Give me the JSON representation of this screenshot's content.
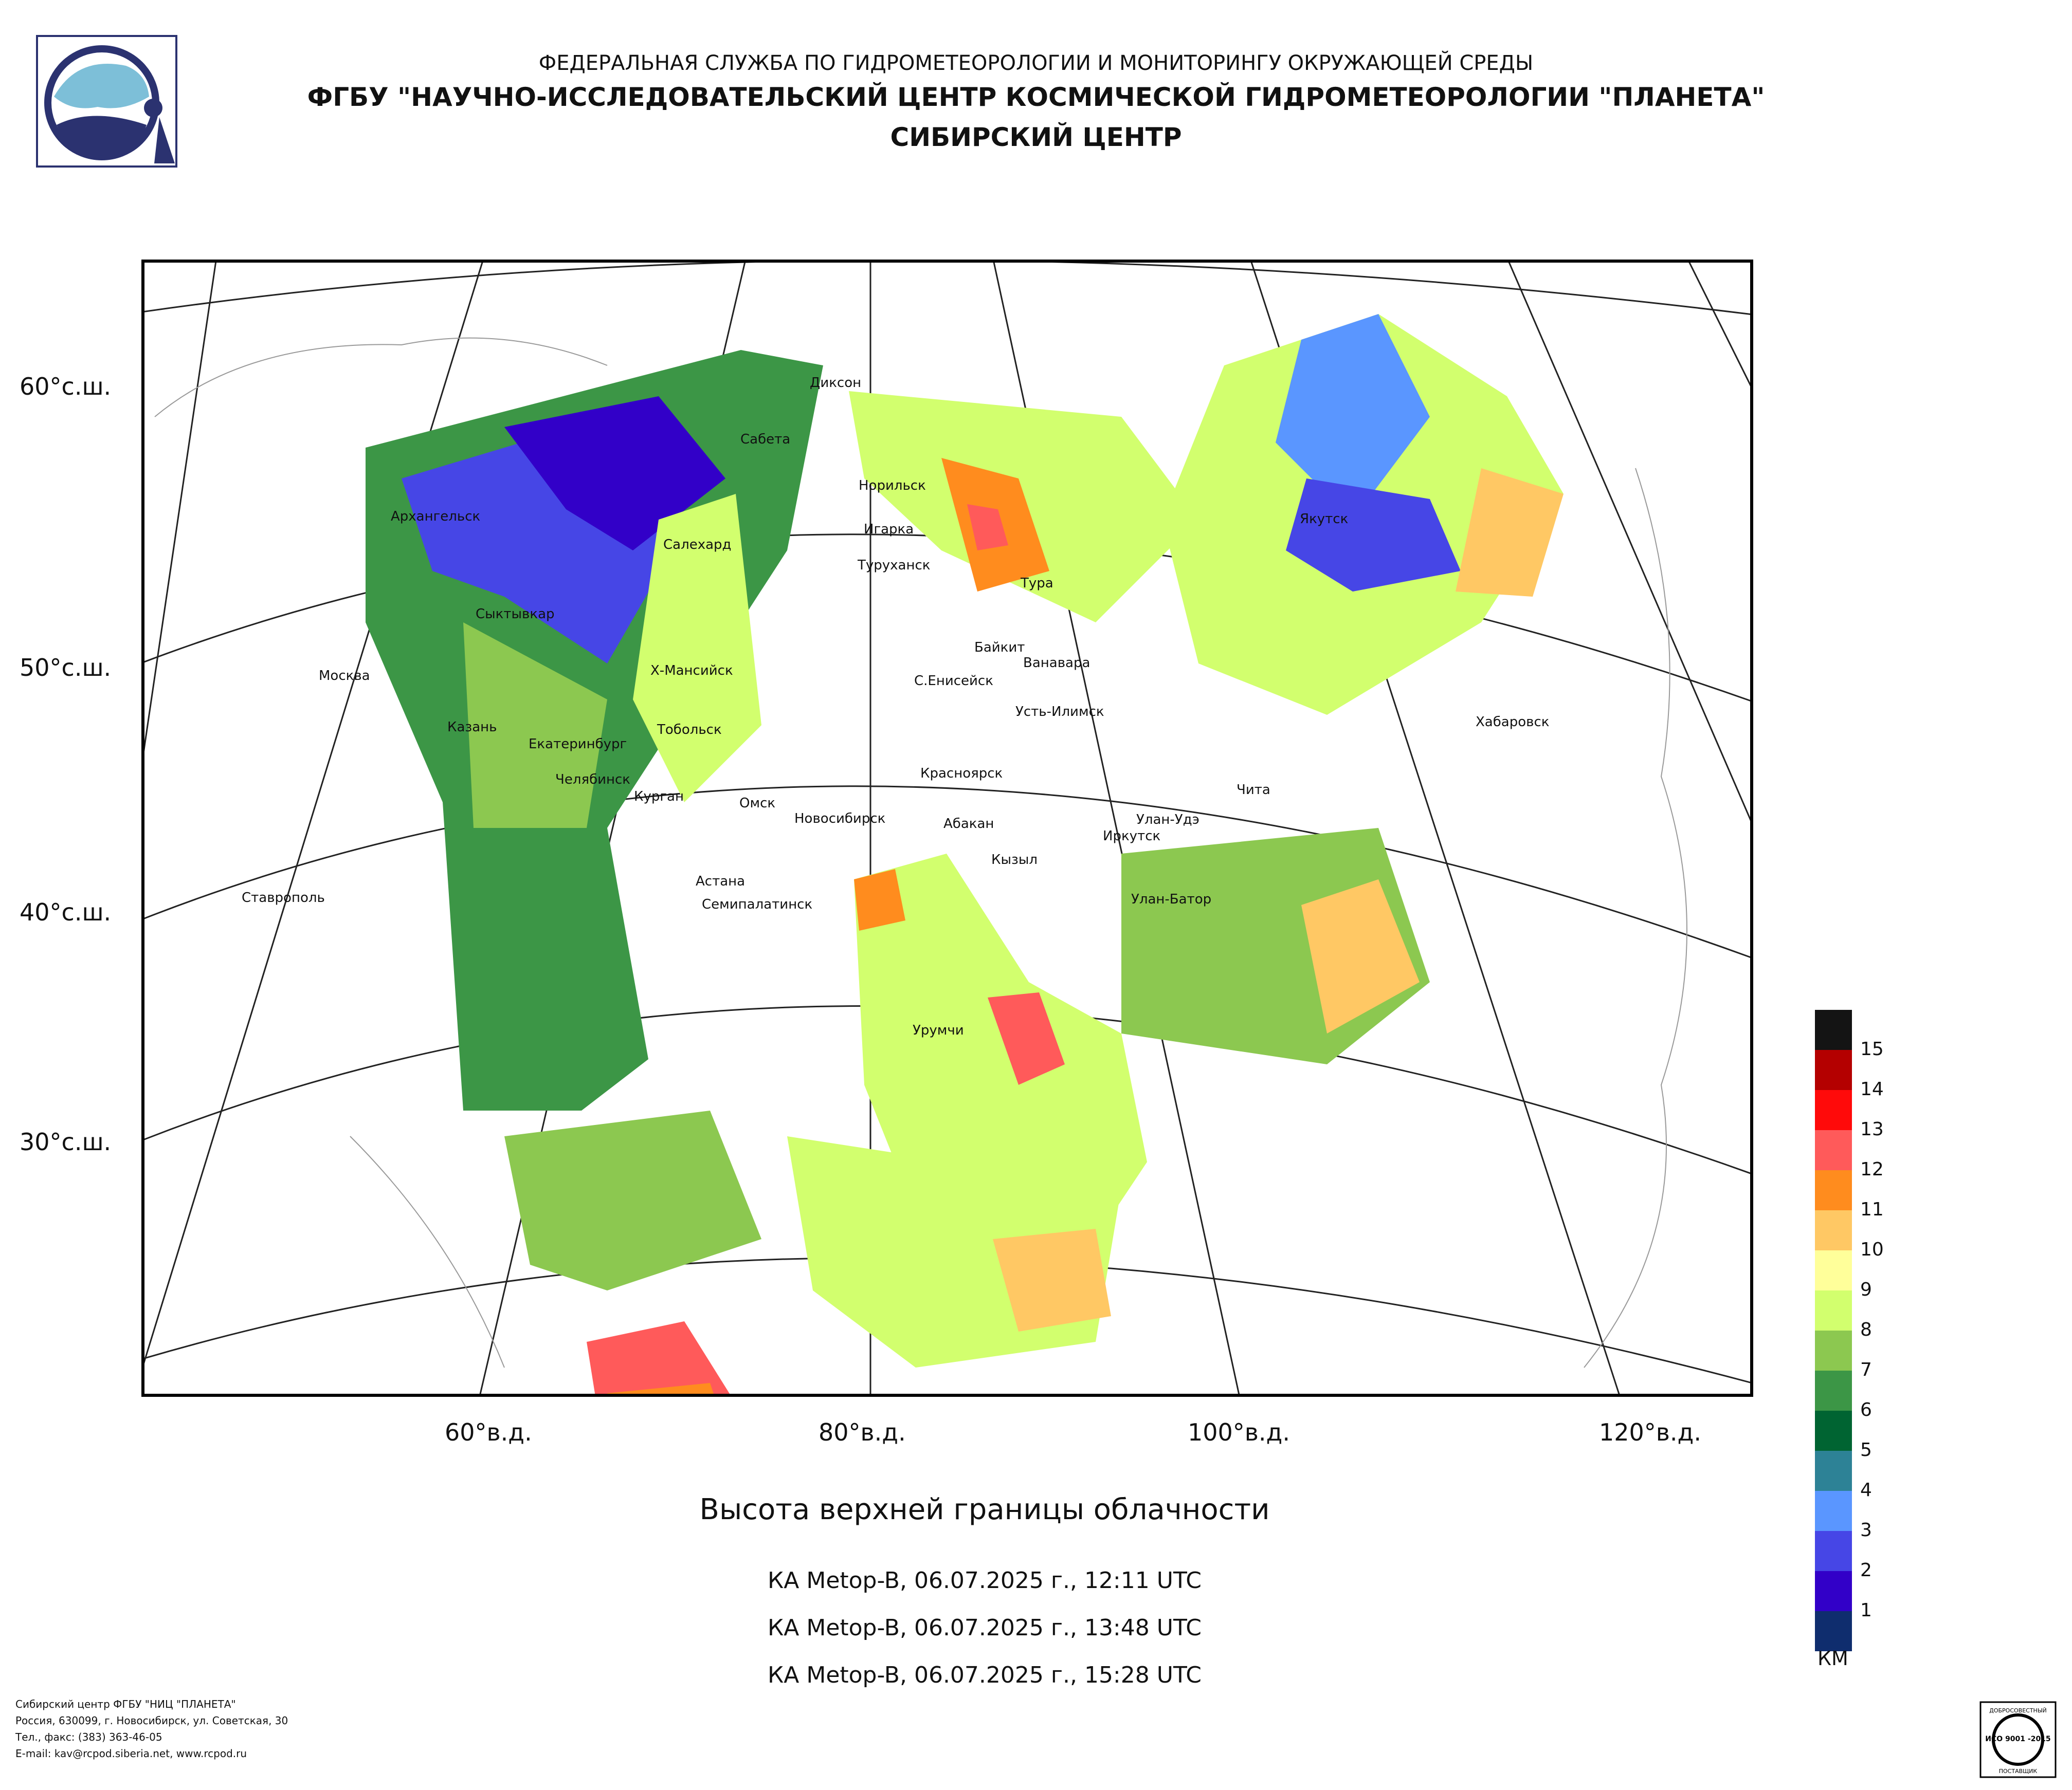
{
  "header": {
    "line1": "ФЕДЕРАЛЬНАЯ СЛУЖБА ПО ГИДРОМЕТЕОРОЛОГИИ И МОНИТОРИНГУ ОКРУЖАЮЩЕЙ СРЕДЫ",
    "line2": "ФГБУ \"НАУЧНО-ИССЛЕДОВАТЕЛЬСКИЙ ЦЕНТР КОСМИЧЕСКОЙ ГИДРОМЕТЕОРОЛОГИИ \"ПЛАНЕТА\"",
    "line3": "СИБИРСКИЙ ЦЕНТР"
  },
  "map": {
    "lat_labels": [
      "60°с.ш.",
      "50°с.ш.",
      "40°с.ш.",
      "30°с.ш."
    ],
    "lon_labels": [
      "60°в.д.",
      "80°в.д.",
      "100°в.д.",
      "120°в.д."
    ],
    "cities": [
      "Диксон",
      "Сабета",
      "Норильск",
      "Архангельск",
      "Салехард",
      "Игарка",
      "Туруханск",
      "Тура",
      "Якутск",
      "Сыктывкар",
      "Байкит",
      "Ванавара",
      "Х-Мансийск",
      "С.Енисейск",
      "Москва",
      "Усть-Илимск",
      "Хабаровск",
      "Казань",
      "Тобольск",
      "Екатеринбург",
      "Красноярск",
      "Чита",
      "Челябинск",
      "Курган",
      "Омск",
      "Новосибирск",
      "Абакан",
      "Улан-Удэ",
      "Иркутск",
      "Кызыл",
      "Астана",
      "Улан-Батор",
      "Ставрополь",
      "Семипалатинск",
      "Урумчи"
    ]
  },
  "title": "Высота верхней границы облачности",
  "passes": [
    "КА Metop-B, 06.07.2025 г., 12:11 UTC",
    "КА Metop-B, 06.07.2025 г., 13:48 UTC",
    "КА Metop-B, 06.07.2025 г., 15:28 UTC"
  ],
  "legend": {
    "unit": "КМ",
    "levels": [
      "15",
      "14",
      "13",
      "12",
      "11",
      "10",
      "9",
      "8",
      "7",
      "6",
      "5",
      "4",
      "3",
      "2",
      "1"
    ],
    "colors": [
      "#141414",
      "#b40000",
      "#ff0a0a",
      "#ff5a5a",
      "#ff8c1e",
      "#ffc864",
      "#ffff9a",
      "#d2ff6e",
      "#8cc850",
      "#3c9646",
      "#006432",
      "#2d8296",
      "#5a96ff",
      "#4646e6",
      "#3200c8",
      "#0f2d6e"
    ]
  },
  "footer": [
    "Сибирский центр ФГБУ \"НИЦ \"ПЛАНЕТА\"",
    "Россия, 630099, г. Новосибирск, ул. Советская, 30",
    "Тел., факс: (383) 363-46-05",
    "E-mail: kav@rcpod.siberia.net, www.rcpod.ru"
  ],
  "cert": {
    "top": "ДОБРОСОВЕСТНЫЙ",
    "mid": "ИСО 9001 -2015",
    "bottom": "ПОСТАВЩИК"
  }
}
